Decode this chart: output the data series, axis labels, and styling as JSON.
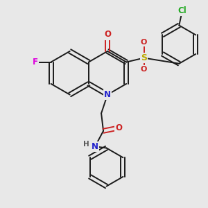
{
  "bg_color": "#e8e8e8",
  "bond_color": "#1a1a1a",
  "atom_colors": {
    "F": "#dd00dd",
    "N": "#2222cc",
    "O": "#cc2222",
    "S": "#bbaa00",
    "Cl": "#22aa22",
    "C": "#1a1a1a",
    "H": "#555555"
  },
  "figsize": [
    3.0,
    3.0
  ],
  "dpi": 100,
  "bond_lw": 1.4,
  "double_sep": 0.1
}
